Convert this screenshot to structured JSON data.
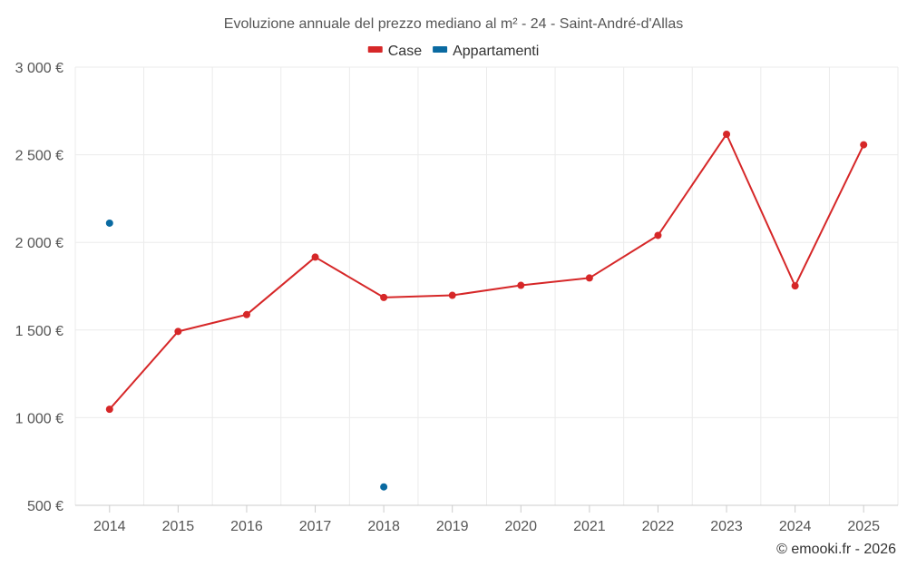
{
  "chart_data": {
    "type": "line",
    "title": "Evoluzione annuale del prezzo mediano al m² - 24 - Saint-André-d'Allas",
    "categories": [
      "2014",
      "2015",
      "2016",
      "2017",
      "2018",
      "2019",
      "2020",
      "2021",
      "2022",
      "2023",
      "2024",
      "2025"
    ],
    "ylim": [
      500,
      3000
    ],
    "yticks": [
      500,
      1000,
      1500,
      2000,
      2500,
      3000
    ],
    "ytick_labels": [
      "500 €",
      "1 000 €",
      "1 500 €",
      "2 000 €",
      "2 500 €",
      "3 000 €"
    ],
    "xlabel": "",
    "ylabel": "",
    "series": [
      {
        "name": "Case",
        "color": "#d62728",
        "values": [
          1048,
          1492,
          1588,
          1916,
          1686,
          1698,
          1755,
          1797,
          2040,
          2617,
          1752,
          2557
        ]
      },
      {
        "name": "Appartamenti",
        "color": "#0a6aa1",
        "values": [
          2110,
          null,
          null,
          null,
          605,
          null,
          null,
          null,
          null,
          null,
          null,
          null
        ]
      }
    ],
    "legend_position": "top-center",
    "grid": true
  },
  "credit": "© emooki.fr - 2026"
}
